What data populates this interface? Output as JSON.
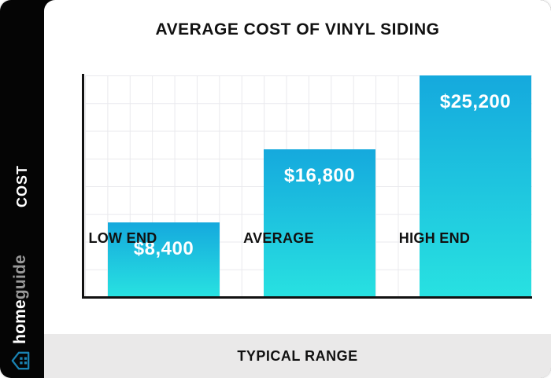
{
  "page": {
    "title": "AVERAGE COST OF VINYL SIDING"
  },
  "sidebar": {
    "axis_label": "COST",
    "logo": {
      "home": "home",
      "guide": "guide"
    }
  },
  "chart_data": {
    "type": "bar",
    "title": "AVERAGE COST OF VINYL SIDING",
    "categories": [
      "LOW END",
      "AVERAGE",
      "HIGH END"
    ],
    "values": [
      8400,
      16800,
      25200
    ],
    "value_labels": [
      "$8,400",
      "$16,800",
      "$25,200"
    ],
    "xlabel": "TYPICAL RANGE",
    "ylabel": "COST",
    "ylim": [
      0,
      25200
    ],
    "grid": true,
    "legend": "none",
    "bar_color_top": "#15a9dd",
    "bar_color_bottom": "#28e1e1"
  },
  "footer": {
    "label": "TYPICAL RANGE"
  },
  "colors": {
    "sidebar_bg": "#050505",
    "panel_bg": "#ffffff",
    "footer_bg": "#eae9e9",
    "grid_line": "#e9e9ed",
    "axis": "#111111",
    "text": "#111111",
    "value_text": "#ffffff",
    "logo_guide": "#9a9a9a",
    "logo_icon": "#1a82b2"
  }
}
